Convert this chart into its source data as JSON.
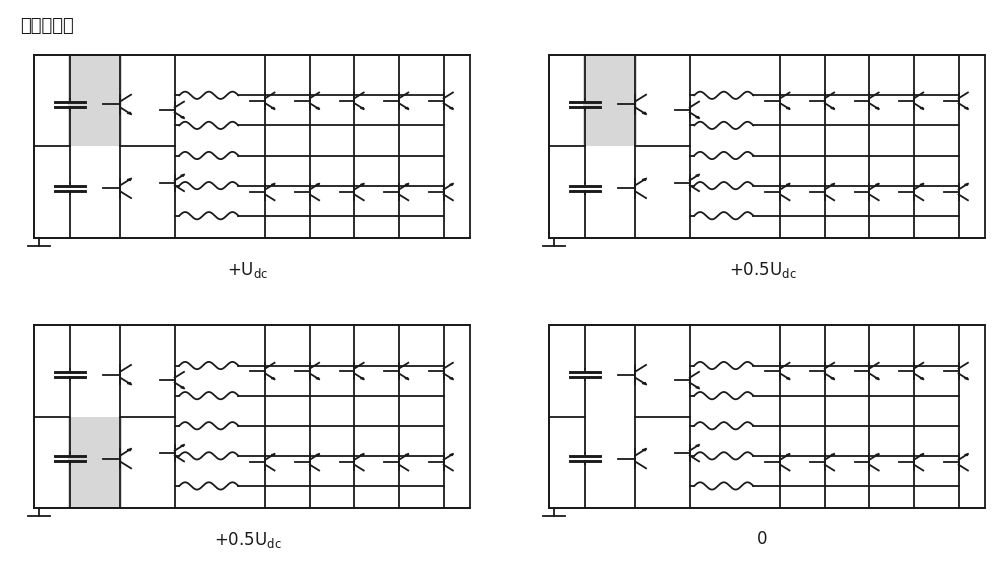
{
  "title": "主桥臂电位",
  "title_fontsize": 13,
  "bg_color": "#ffffff",
  "line_color": "#1a1a1a",
  "highlight_color": "#d0d0d0",
  "fig_width": 10.0,
  "fig_height": 5.63,
  "panels": [
    {
      "label": "+U",
      "sub": "dc",
      "highlight": "top"
    },
    {
      "label": "+0.5U",
      "sub": "dc",
      "highlight": "top"
    },
    {
      "label": "+0.5U",
      "sub": "dc",
      "highlight": "bottom"
    },
    {
      "label": "0",
      "sub": "",
      "highlight": "none"
    }
  ]
}
